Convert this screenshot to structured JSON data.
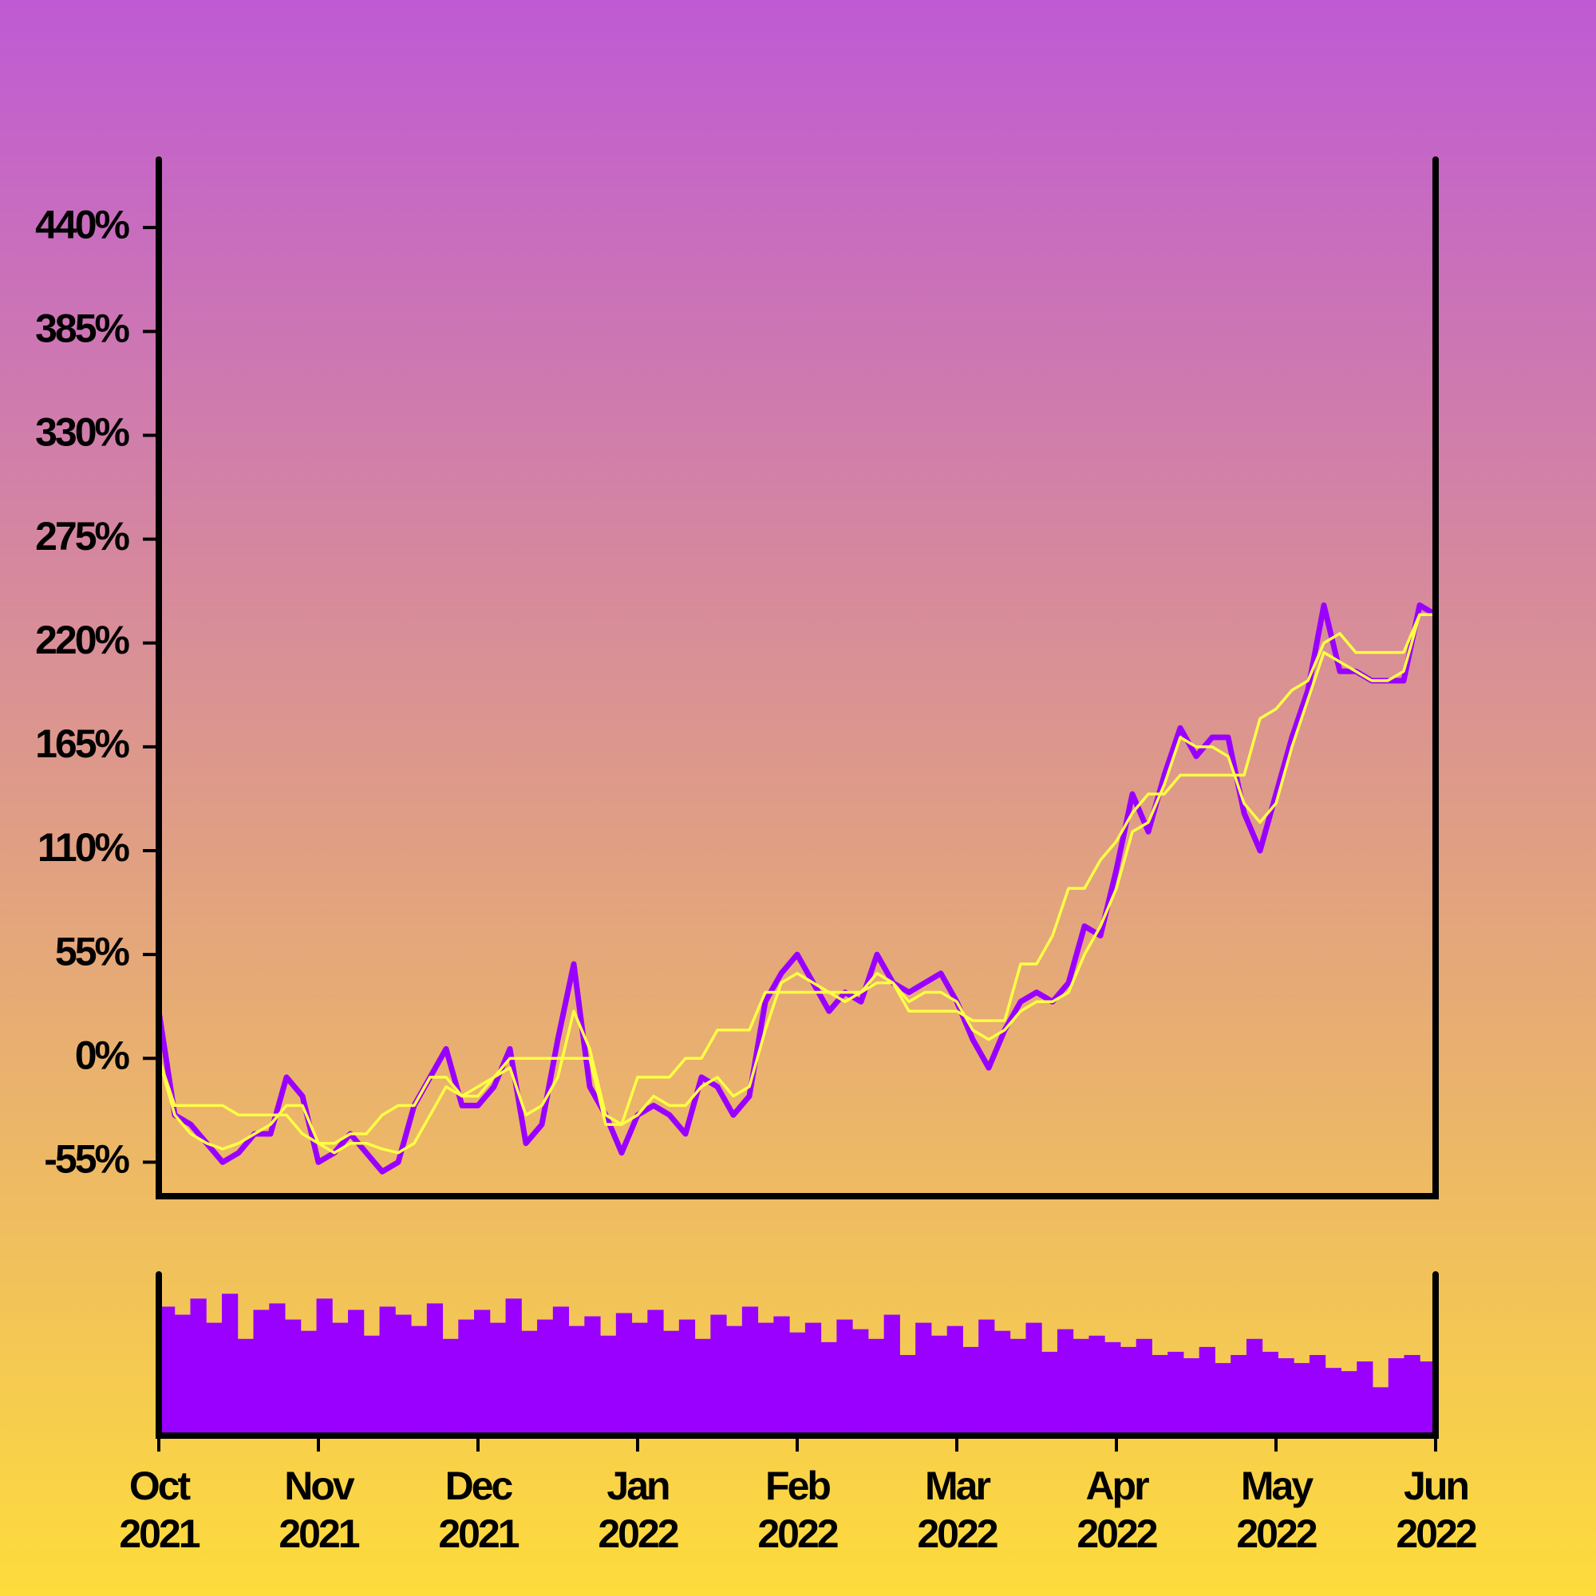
{
  "chart_data": [
    {
      "type": "line",
      "xlim": [
        "2021-10",
        "2022-06"
      ],
      "xticks": [
        {
          "value": "2021-10",
          "label": "Oct 2021"
        },
        {
          "value": "2021-11",
          "label": "Nov 2021"
        },
        {
          "value": "2021-12",
          "label": "Dec 2021"
        },
        {
          "value": "2022-01",
          "label": "Jan 2022"
        },
        {
          "value": "2022-02",
          "label": "Feb 2022"
        },
        {
          "value": "2022-03",
          "label": "Mar 2022"
        },
        {
          "value": "2022-04",
          "label": "Apr 2022"
        },
        {
          "value": "2022-05",
          "label": "May 2022"
        },
        {
          "value": "2022-06",
          "label": "Jun 2022"
        }
      ],
      "ylim": [
        -73,
        476
      ],
      "yticks": [
        {
          "value": -55,
          "label": "-55%"
        },
        {
          "value": 0,
          "label": "0%"
        },
        {
          "value": 55,
          "label": "55%"
        },
        {
          "value": 110,
          "label": "110%"
        },
        {
          "value": 165,
          "label": "165%"
        },
        {
          "value": 220,
          "label": "220%"
        },
        {
          "value": 275,
          "label": "275%"
        },
        {
          "value": 330,
          "label": "330%"
        },
        {
          "value": 385,
          "label": "385%"
        },
        {
          "value": 440,
          "label": "440%"
        }
      ],
      "series": [
        {
          "color": "#9900ff",
          "values": [
            25,
            -30,
            -35,
            -45,
            -55,
            -50,
            -40,
            -40,
            -10,
            -20,
            -55,
            -50,
            -40,
            -50,
            -60,
            -55,
            -25,
            -10,
            5,
            -25,
            -25,
            -15,
            5,
            -45,
            -35,
            10,
            50,
            -15,
            -30,
            -50,
            -30,
            -25,
            -30,
            -40,
            -10,
            -15,
            -30,
            -20,
            30,
            45,
            55,
            40,
            25,
            35,
            30,
            55,
            40,
            35,
            40,
            45,
            30,
            10,
            -5,
            15,
            30,
            35,
            30,
            40,
            70,
            65,
            100,
            140,
            120,
            150,
            175,
            160,
            170,
            170,
            130,
            110,
            140,
            170,
            195,
            240,
            205,
            205,
            200,
            200,
            200,
            240,
            235
          ]
        },
        {
          "color": "#ffff44",
          "values": [
            0,
            -30,
            -40,
            -45,
            -48,
            -45,
            -40,
            -35,
            -25,
            -25,
            -45,
            -50,
            -45,
            -45,
            -48,
            -50,
            -45,
            -30,
            -15,
            -20,
            -15,
            -10,
            -5,
            -30,
            -25,
            -10,
            25,
            5,
            -30,
            -35,
            -30,
            -20,
            -25,
            -25,
            -15,
            -10,
            -20,
            -15,
            15,
            40,
            45,
            40,
            35,
            30,
            35,
            45,
            40,
            30,
            35,
            35,
            30,
            15,
            10,
            15,
            25,
            30,
            30,
            35,
            55,
            70,
            90,
            120,
            125,
            145,
            170,
            165,
            165,
            160,
            135,
            125,
            135,
            165,
            190,
            215,
            210,
            205,
            200,
            200,
            205,
            235,
            235
          ]
        },
        {
          "color": "#ffff44",
          "values": [
            0,
            -25,
            -25,
            -25,
            -25,
            -30,
            -30,
            -30,
            -30,
            -40,
            -45,
            -45,
            -40,
            -40,
            -30,
            -25,
            -25,
            -10,
            -10,
            -20,
            -20,
            -10,
            0,
            0,
            0,
            0,
            0,
            0,
            -35,
            -35,
            -10,
            -10,
            -10,
            0,
            0,
            15,
            15,
            15,
            35,
            35,
            35,
            35,
            35,
            35,
            35,
            40,
            40,
            25,
            25,
            25,
            25,
            20,
            20,
            20,
            50,
            50,
            65,
            90,
            90,
            105,
            115,
            130,
            140,
            140,
            150,
            150,
            150,
            150,
            150,
            180,
            185,
            195,
            200,
            220,
            225,
            215,
            215,
            215,
            215,
            235,
            235
          ]
        }
      ]
    },
    {
      "type": "bar",
      "color": "#9900ff",
      "ylim": [
        0,
        100
      ],
      "values": [
        80,
        75,
        85,
        70,
        88,
        60,
        78,
        82,
        72,
        65,
        85,
        70,
        78,
        62,
        80,
        75,
        68,
        82,
        60,
        72,
        78,
        70,
        85,
        65,
        72,
        80,
        68,
        74,
        62,
        76,
        70,
        78,
        65,
        72,
        60,
        75,
        68,
        80,
        70,
        74,
        64,
        70,
        58,
        72,
        66,
        60,
        75,
        50,
        70,
        62,
        68,
        55,
        72,
        65,
        60,
        70,
        52,
        66,
        60,
        62,
        58,
        55,
        60,
        50,
        52,
        48,
        55,
        45,
        50,
        60,
        52,
        48,
        45,
        50,
        42,
        40,
        46,
        30,
        48,
        50,
        46
      ]
    }
  ]
}
